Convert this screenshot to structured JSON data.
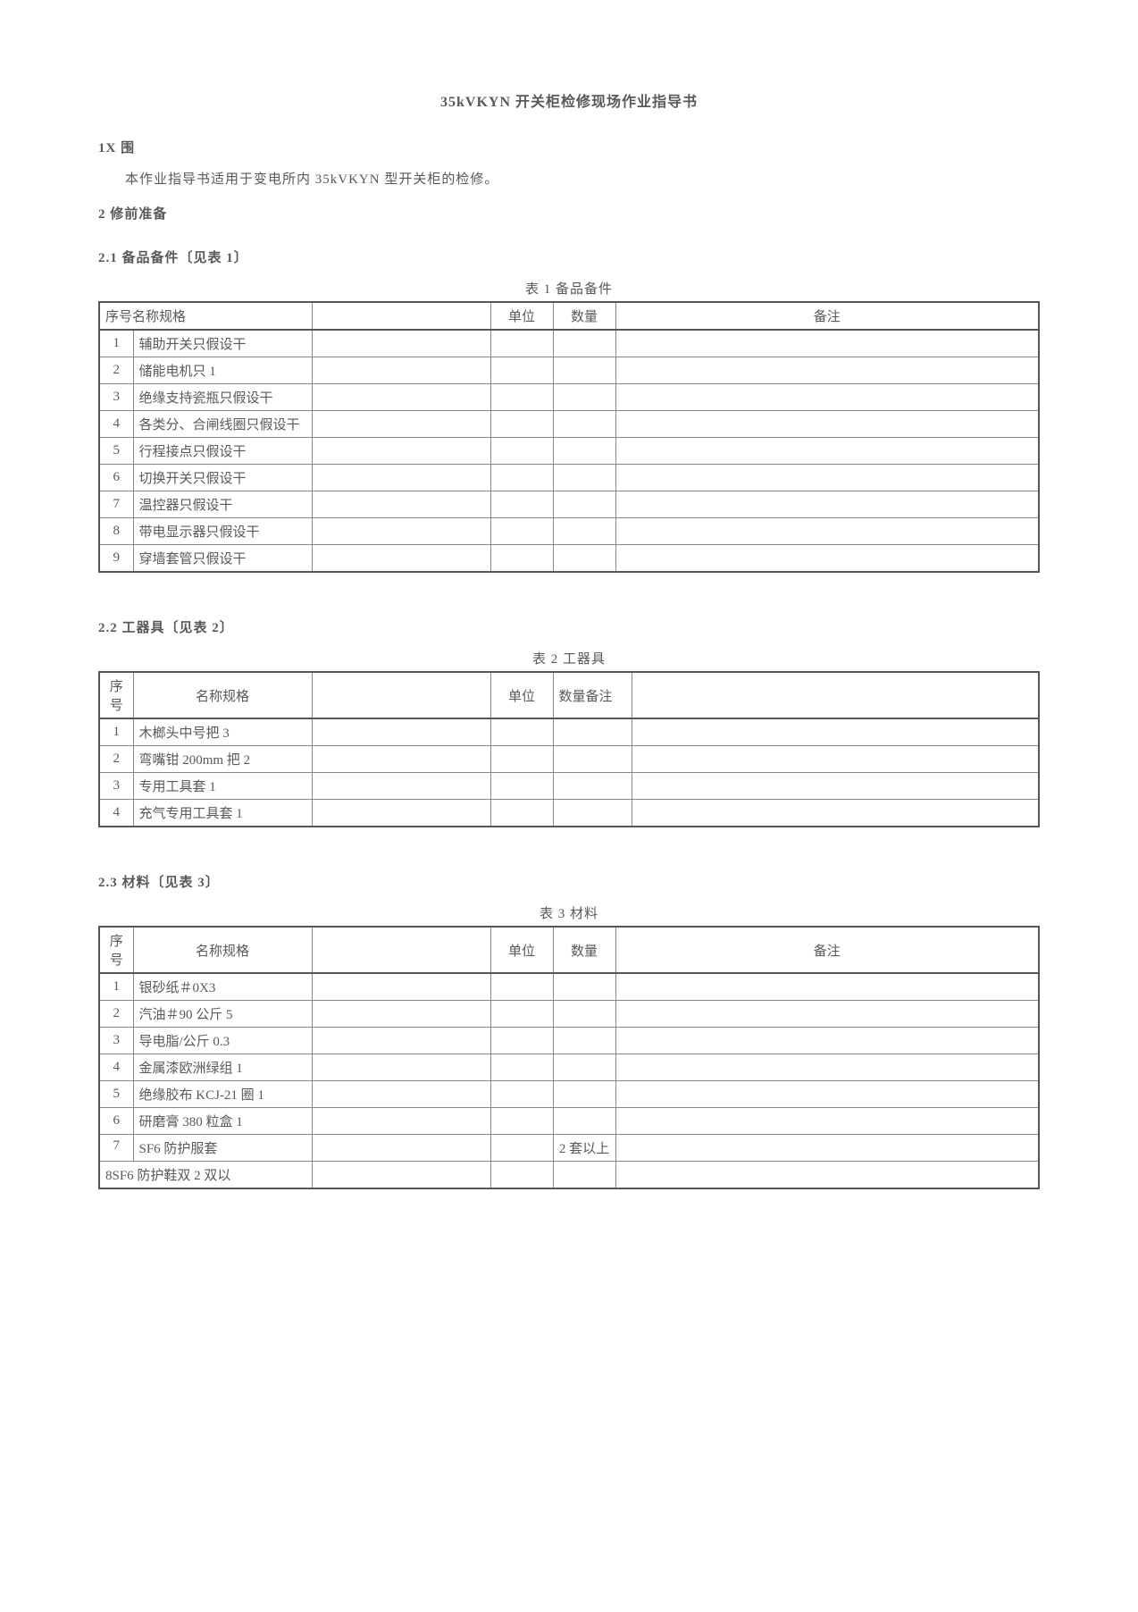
{
  "title": "35kVKYN 开关柜检修现场作业指导书",
  "s1_heading": "1X 围",
  "s1_body": "本作业指导书适用于变电所内 35kVKYN 型开关柜的检修。",
  "s2_heading": "2 修前准备",
  "s21_heading": "2.1 备品备件〔见表 1〕",
  "t1_caption": "表 1 备品备件",
  "t1_headers": {
    "seq_name_spec": "序号名称规格",
    "unit": "单位",
    "qty": "数量",
    "remark": "备注"
  },
  "t1_rows": [
    {
      "seq": "1",
      "name": "辅助开关只假设干"
    },
    {
      "seq": "2",
      "name": "储能电机只 1"
    },
    {
      "seq": "3",
      "name": "绝缘支持瓷瓶只假设干"
    },
    {
      "seq": "4",
      "name": "各类分、合闸线圈只假设干"
    },
    {
      "seq": "5",
      "name": "行程接点只假设干"
    },
    {
      "seq": "6",
      "name": "切换开关只假设干"
    },
    {
      "seq": "7",
      "name": "温控器只假设干"
    },
    {
      "seq": "8",
      "name": "带电显示器只假设干"
    },
    {
      "seq": "9",
      "name": "穿墙套管只假设干"
    }
  ],
  "s22_heading": "2.2 工器具〔见表 2〕",
  "t2_caption": "表 2 工器具",
  "t2_headers": {
    "seq": "序号",
    "name": "名称规格",
    "unit": "单位",
    "qtyremark": "数量备注"
  },
  "t2_rows": [
    {
      "seq": "1",
      "name": "木榔头中号把 3"
    },
    {
      "seq": "2",
      "name": "弯嘴钳 200mm 把 2"
    },
    {
      "seq": "3",
      "name": "专用工具套 1"
    },
    {
      "seq": "4",
      "name": "充气专用工具套 1"
    }
  ],
  "s23_heading": "2.3 材料〔见表 3〕",
  "t3_caption": "表 3 材料",
  "t3_headers": {
    "seq": "序号",
    "name": "名称规格",
    "unit": "单位",
    "qty": "数量",
    "remark": "备注"
  },
  "t3_rows": [
    {
      "seq": "1",
      "name": "银砂纸＃0X3",
      "qty": ""
    },
    {
      "seq": "2",
      "name": "汽油＃90 公斤 5",
      "qty": ""
    },
    {
      "seq": "3",
      "name": "导电脂/公斤 0.3",
      "qty": ""
    },
    {
      "seq": "4",
      "name": "金属漆欧洲绿组 1",
      "qty": ""
    },
    {
      "seq": "5",
      "name": "绝缘胶布 KCJ-21 圈 1",
      "qty": ""
    },
    {
      "seq": "6",
      "name": "研磨膏 380 粒盒 1",
      "qty": ""
    },
    {
      "seq": "7",
      "name": "SF6 防护服套",
      "qty": "2 套以上"
    },
    {
      "seq": "8",
      "name": "SF6 防护鞋双 2 双以",
      "qty": "",
      "merge": true
    }
  ]
}
